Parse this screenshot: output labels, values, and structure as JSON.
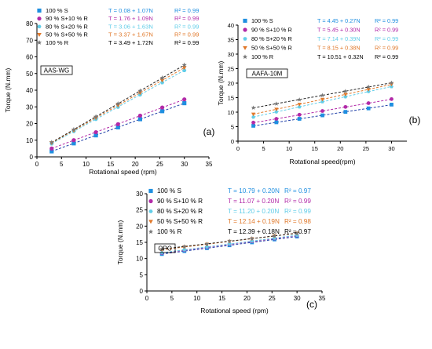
{
  "figure": {
    "colors": {
      "S100": "#1f8fe0",
      "S90R10": "#b22aa8",
      "S80R20": "#62cde8",
      "S50R50": "#e0782a",
      "R100": "#777777",
      "fit_S100": "#1f3fa8",
      "fit_R100": "#222222"
    }
  },
  "chart_data": [
    {
      "panel": "(a)",
      "type": "scatter",
      "title": "AAS-WG",
      "xlabel": "Rotational speed (rpm)",
      "ylabel": "Torque (N.mm)",
      "xlim": [
        0,
        35
      ],
      "ylim": [
        0,
        80
      ],
      "xticks": [
        0,
        5,
        10,
        15,
        20,
        25,
        30,
        35
      ],
      "yticks": [
        0,
        10,
        20,
        30,
        40,
        50,
        60,
        70,
        80
      ],
      "legend_position": "top",
      "x": [
        3,
        7.5,
        12,
        16.5,
        21,
        25.5,
        30
      ],
      "series": [
        {
          "name": "100 % S",
          "marker": "square",
          "color_key": "S100",
          "equation": "T = 0.08 + 1.07N",
          "r2": "R² = 0.99",
          "values": [
            3.3,
            8.1,
            12.9,
            17.7,
            22.6,
            27.4,
            32.2
          ],
          "fit": [
            0.08,
            1.07
          ]
        },
        {
          "name": "90 % S+10 % R",
          "marker": "circle",
          "color_key": "S90R10",
          "equation": "T = 1.76 + 1.09N",
          "r2": "R² = 0.99",
          "values": [
            5.0,
            10.0,
            14.8,
            19.6,
            24.7,
            29.6,
            34.5
          ],
          "fit": [
            1.76,
            1.09
          ]
        },
        {
          "name": "80 % S+20 % R",
          "marker": "hexagon",
          "color_key": "S80R20",
          "equation": "T = 3.06 + 1.63N",
          "r2": "R² = 0.99",
          "values": [
            7.9,
            15.3,
            22.6,
            29.9,
            37.3,
            44.6,
            51.9
          ],
          "fit": [
            3.06,
            1.63
          ]
        },
        {
          "name": "50 % S+50 % R",
          "marker": "triangle-down",
          "color_key": "S50R50",
          "equation": "T = 3.37 + 1.67N",
          "r2": "R² = 0.99",
          "values": [
            8.4,
            15.9,
            23.4,
            30.9,
            38.4,
            45.9,
            53.5
          ],
          "fit": [
            3.37,
            1.67
          ]
        },
        {
          "name": "100 % R",
          "marker": "star",
          "color_key": "R100",
          "equation": "T = 3.49 + 1.72N",
          "r2": "R² = 0.99",
          "values": [
            8.7,
            16.4,
            24.1,
            31.9,
            39.6,
            47.4,
            55.1
          ],
          "fit": [
            3.49,
            1.72
          ]
        }
      ]
    },
    {
      "panel": "(b)",
      "type": "scatter",
      "title": "AAFA-10M",
      "xlabel": "Rotational speed(rpm)",
      "ylabel": "Torque (N.mm)",
      "xlim": [
        0,
        33
      ],
      "ylim": [
        0,
        40
      ],
      "xticks": [
        0,
        5,
        10,
        15,
        20,
        25,
        30
      ],
      "yticks": [
        0,
        5,
        10,
        15,
        20,
        25,
        30,
        35,
        40
      ],
      "legend_position": "top",
      "x": [
        3,
        7.5,
        12,
        16.5,
        21,
        25.5,
        30
      ],
      "series": [
        {
          "name": "100 % S",
          "marker": "square",
          "color_key": "S100",
          "equation": "T = 4.45 + 0.27N",
          "r2": "R² = 0.99",
          "values": [
            5.3,
            6.5,
            7.7,
            8.9,
            10.1,
            11.3,
            12.6
          ],
          "fit": [
            4.45,
            0.27
          ]
        },
        {
          "name": "90 % S+10 % R",
          "marker": "circle",
          "color_key": "S90R10",
          "equation": "T = 5.45 + 0.30N",
          "r2": "R² = 0.99",
          "values": [
            6.4,
            7.7,
            9.1,
            10.4,
            11.8,
            13.1,
            14.5
          ],
          "fit": [
            5.45,
            0.3
          ]
        },
        {
          "name": "80 % S+20 % R",
          "marker": "hexagon",
          "color_key": "S80R20",
          "equation": "T = 7.14 + 0.39N",
          "r2": "R² = 0.99",
          "values": [
            8.3,
            10.1,
            11.8,
            13.6,
            15.3,
            17.1,
            18.8
          ],
          "fit": [
            7.14,
            0.39
          ]
        },
        {
          "name": "50 % S+50 % R",
          "marker": "triangle-down",
          "color_key": "S50R50",
          "equation": "T = 8.15 + 0.38N",
          "r2": "R² = 0.99",
          "values": [
            9.3,
            11.0,
            12.7,
            14.4,
            16.1,
            17.8,
            19.6
          ],
          "fit": [
            8.15,
            0.38
          ]
        },
        {
          "name": "100 % R",
          "marker": "star",
          "color_key": "R100",
          "equation": "T = 10.51 + 0.32N",
          "r2": "R² = 0.99",
          "values": [
            11.5,
            12.9,
            14.3,
            15.8,
            17.2,
            18.7,
            20.1
          ],
          "fit": [
            10.51,
            0.32
          ]
        }
      ]
    },
    {
      "panel": "(c)",
      "type": "scatter",
      "title": "OPC",
      "xlabel": "Rotational speed (rpm)",
      "ylabel": "Torque (N.mm)",
      "xlim": [
        0,
        35
      ],
      "ylim": [
        0,
        30
      ],
      "xticks": [
        0,
        5,
        10,
        15,
        20,
        25,
        30,
        35
      ],
      "yticks": [
        0,
        5,
        10,
        15,
        20,
        25,
        30
      ],
      "legend_position": "top",
      "x": [
        3,
        7.5,
        12,
        16.5,
        21,
        25.5,
        30
      ],
      "series": [
        {
          "name": "100 % S",
          "marker": "square",
          "color_key": "S100",
          "equation": "T = 10.79 + 0.20N",
          "r2": "R² = 0.97",
          "values": [
            11.4,
            12.3,
            13.2,
            14.1,
            15.0,
            15.9,
            16.8
          ],
          "fit": [
            10.79,
            0.2
          ]
        },
        {
          "name": "90 % S+10 % R",
          "marker": "circle",
          "color_key": "S90R10",
          "equation": "T = 11.07 + 0.20N",
          "r2": "R² = 0.99",
          "values": [
            11.7,
            12.6,
            13.5,
            14.4,
            15.3,
            16.2,
            17.1
          ],
          "fit": [
            11.07,
            0.2
          ]
        },
        {
          "name": "80 % S+20 % R",
          "marker": "hexagon",
          "color_key": "S80R20",
          "equation": "T = 11.20 + 0.20N",
          "r2": "R² = 0.99",
          "values": [
            11.8,
            12.7,
            13.6,
            14.5,
            15.4,
            16.3,
            17.2
          ],
          "fit": [
            11.2,
            0.2
          ]
        },
        {
          "name": "50 % S+50 % R",
          "marker": "triangle-down",
          "color_key": "S50R50",
          "equation": "T = 12.14 + 0.19N",
          "r2": "R² = 0.98",
          "values": [
            12.7,
            13.6,
            14.4,
            15.3,
            16.1,
            17.0,
            17.8
          ],
          "fit": [
            12.14,
            0.19
          ]
        },
        {
          "name": "100 % R",
          "marker": "star",
          "color_key": "R100",
          "equation": "T = 12.39 + 0.18N",
          "r2": "R² = 0.97",
          "values": [
            12.9,
            13.7,
            14.5,
            15.4,
            16.2,
            17.0,
            17.8
          ],
          "fit": [
            12.39,
            0.18
          ]
        }
      ]
    }
  ]
}
